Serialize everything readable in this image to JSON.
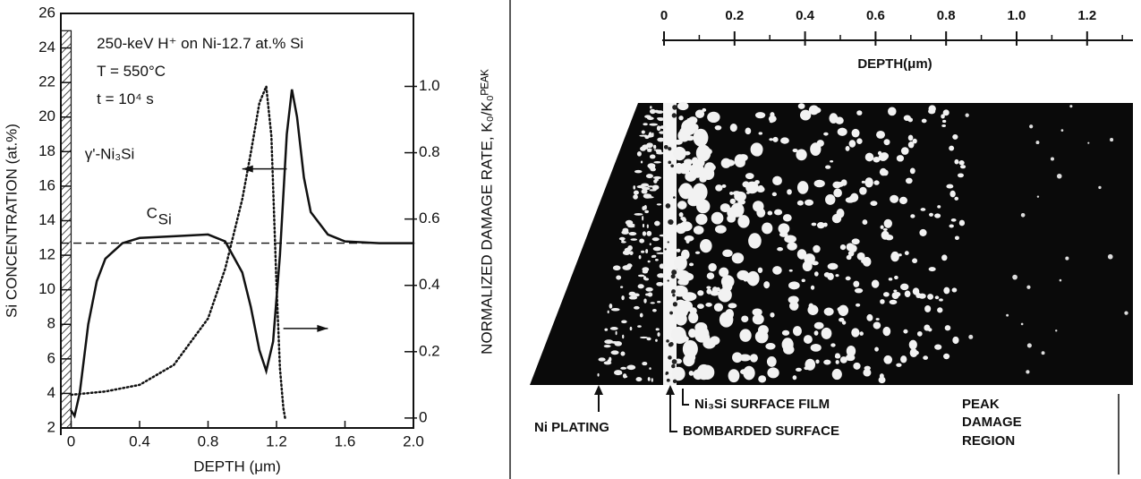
{
  "chart_data": [
    {
      "type": "line",
      "xlabel": "DEPTH (μm)",
      "ylabel": "Si CONCENTRATION (at.%)",
      "y2label": "NORMALIZED DAMAGE RATE, K₀/K₀ᴾᴱᴬᴷ",
      "annotations": [
        "250-keV H⁺ on Ni-12.7 at.% Si",
        "T = 550°C",
        "t = 10⁴ s",
        "γ'-Ni₃Si"
      ],
      "xlim": [
        -0.06,
        2.0
      ],
      "xticks": [
        0,
        0.4,
        0.8,
        1.2,
        1.6,
        {
          "value": 2,
          "label": "2.0"
        }
      ],
      "ylim": [
        2,
        26
      ],
      "yticks": [
        2,
        4,
        6,
        8,
        10,
        12,
        14,
        16,
        18,
        20,
        22,
        24,
        26
      ],
      "y2lim": [
        -0.03,
        1.22
      ],
      "y2ticks": [
        0,
        0.2,
        0.4,
        0.6,
        0.8,
        {
          "value": 1,
          "label": "1.0"
        }
      ],
      "layer_top": 25,
      "reference_line": 12.7,
      "series": [
        {
          "name": "C",
          "name_sub": "Si",
          "color": "#111111",
          "style": "solid",
          "x": [
            0,
            0.02,
            0.05,
            0.1,
            0.15,
            0.2,
            0.3,
            0.4,
            0.6,
            0.8,
            0.9,
            1.0,
            1.05,
            1.1,
            1.14,
            1.18,
            1.22,
            1.26,
            1.29,
            1.32,
            1.36,
            1.4,
            1.5,
            1.6,
            1.8,
            2.0
          ],
          "values": [
            3.0,
            2.7,
            4,
            8,
            10.5,
            11.8,
            12.7,
            13.0,
            13.1,
            13.2,
            12.8,
            11,
            9,
            6.5,
            5.3,
            7,
            12,
            19,
            21.6,
            20,
            16.5,
            14.5,
            13.2,
            12.8,
            12.7,
            12.7
          ]
        },
        {
          "axis": "y2",
          "color": "#111111",
          "style": "dotted",
          "x": [
            0,
            0.2,
            0.4,
            0.6,
            0.8,
            0.9,
            1.0,
            1.05,
            1.1,
            1.14,
            1.17,
            1.2,
            1.22,
            1.24,
            1.25
          ],
          "values": [
            0.07,
            0.08,
            0.1,
            0.16,
            0.3,
            0.45,
            0.66,
            0.8,
            0.95,
            1.0,
            0.85,
            0.4,
            0.15,
            0.03,
            0
          ]
        }
      ]
    },
    {
      "type": "micrograph",
      "xlabel": "DEPTH(μm)",
      "xlim": [
        0,
        1.33
      ],
      "xticks": [
        0,
        0.2,
        0.4,
        0.6,
        0.8,
        {
          "value": 1,
          "label": "1.0"
        },
        1.2
      ],
      "minor_xticks": [
        0.1,
        0.3,
        0.5,
        0.7,
        0.9,
        1.1,
        1.3
      ],
      "annotations": [
        "Ni PLATING",
        "Ni₃Si SURFACE FILM",
        "BOMBARDED SURFACE",
        "PEAK",
        "DAMAGE",
        "REGION"
      ]
    }
  ]
}
